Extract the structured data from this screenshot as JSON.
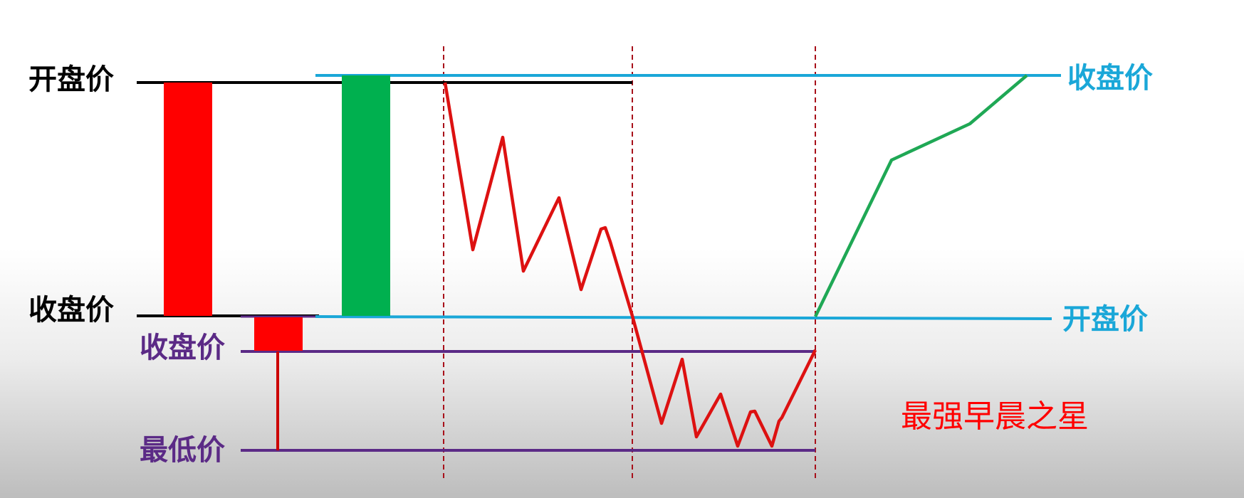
{
  "diagram": {
    "labels": {
      "candle1_open": "开盘价",
      "candle1_close": "收盘价",
      "candle2_close": "收盘价",
      "candle2_low": "最低价",
      "candle3_close": "收盘价",
      "candle3_open": "开盘价"
    },
    "pattern_name": "最强早晨之星",
    "colors": {
      "bearish_red": "#ff0000",
      "bullish_green": "#00b04f",
      "line_black": "#000000",
      "line_cyan": "#1aa7d8",
      "line_purple": "#5b2a86",
      "price_red": "#dd1111",
      "price_green": "#1fa855",
      "divider_red": "#a8101a",
      "pattern_text": "#ff0000"
    }
  }
}
